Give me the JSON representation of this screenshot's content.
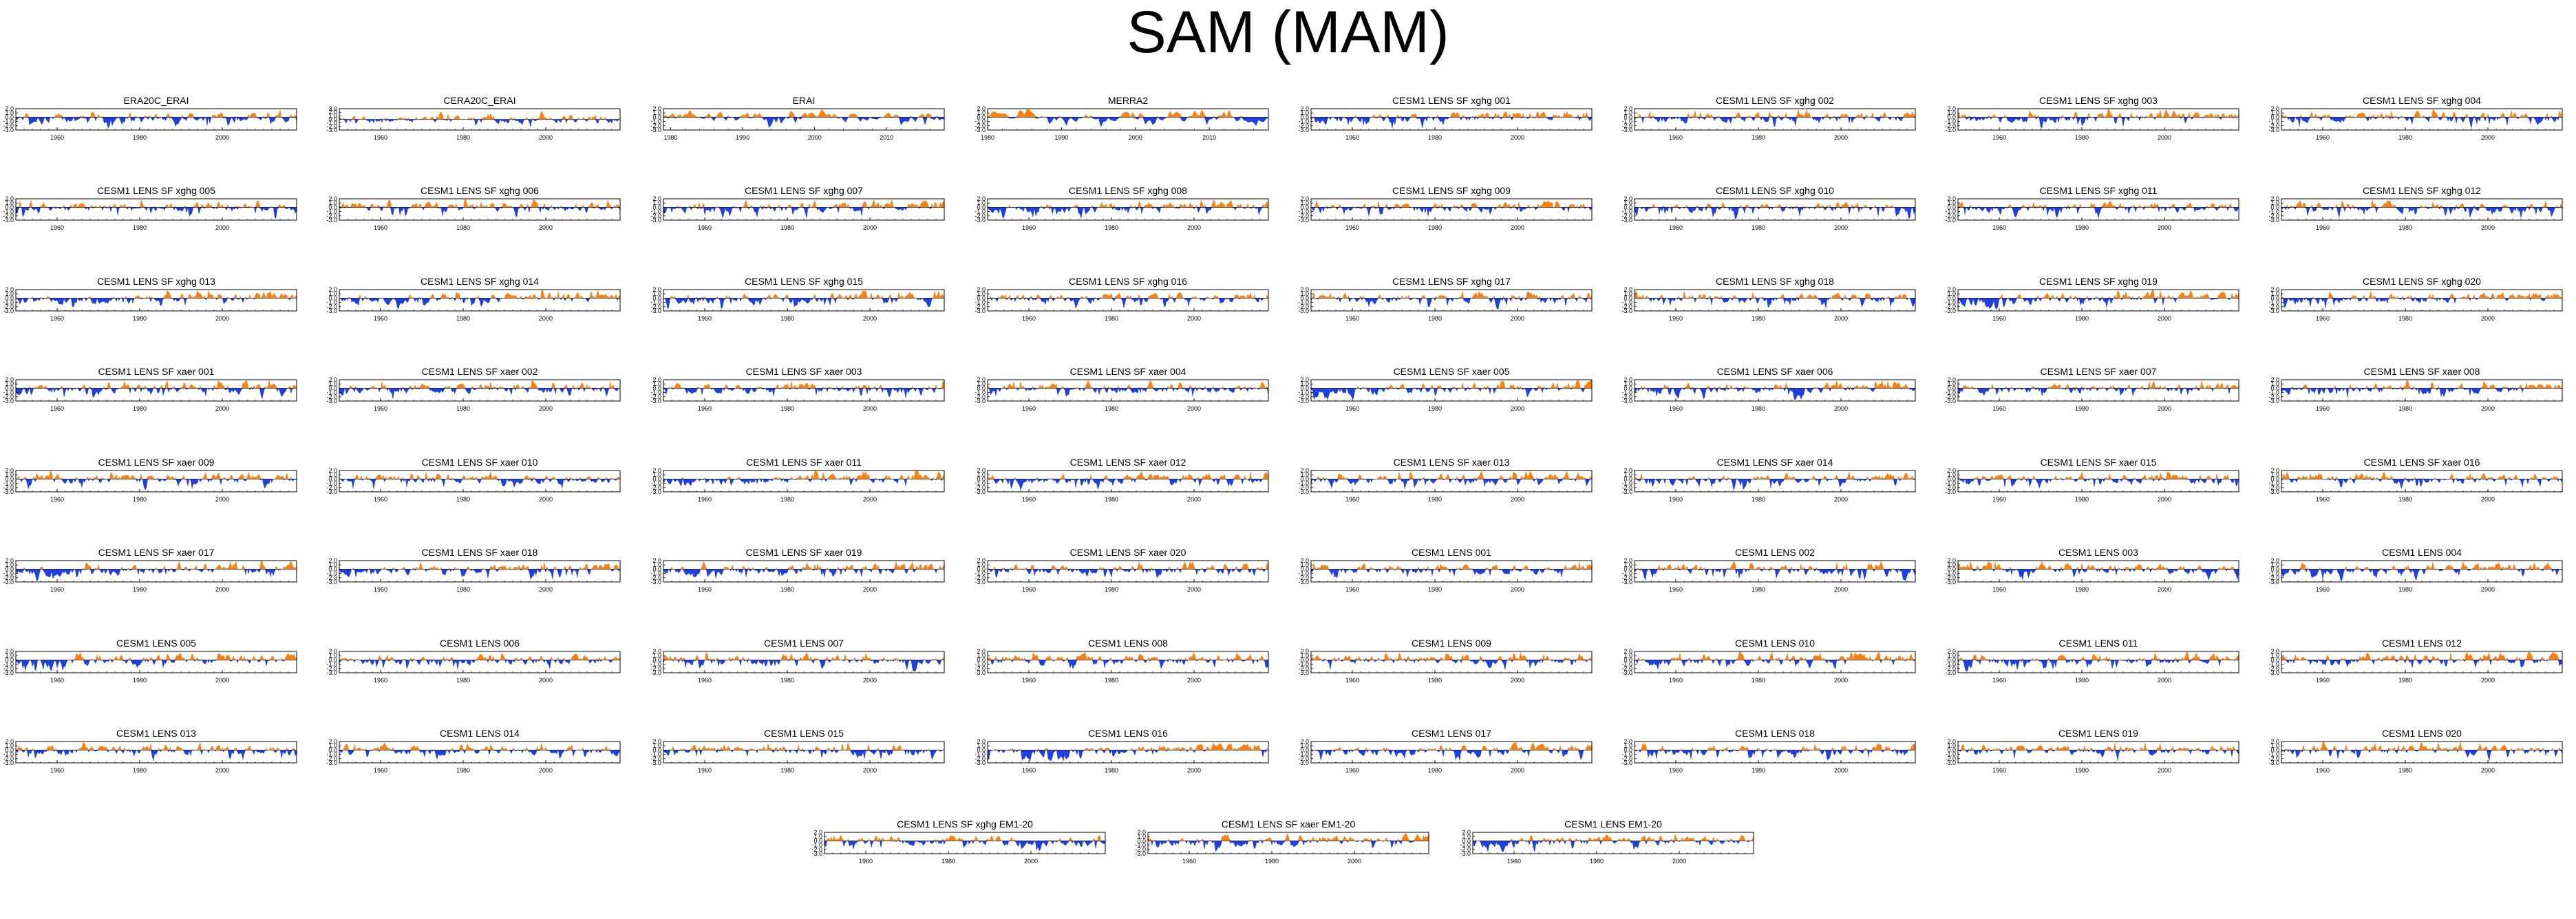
{
  "title": "SAM (MAM)",
  "colors": {
    "positive": "#ff7f0e",
    "negative": "#1f3fe0",
    "frame": "#000000"
  },
  "panel_titles": [
    "ERA20C_ERAI",
    "CERA20C_ERAI",
    "ERAI",
    "MERRA2",
    "CESM1 LENS SF xghg 001",
    "CESM1 LENS SF xghg 002",
    "CESM1 LENS SF xghg 003",
    "CESM1 LENS SF xghg 004",
    "CESM1 LENS SF xghg 005",
    "CESM1 LENS SF xghg 006",
    "CESM1 LENS SF xghg 007",
    "CESM1 LENS SF xghg 008",
    "CESM1 LENS SF xghg 009",
    "CESM1 LENS SF xghg 010",
    "CESM1 LENS SF xghg 011",
    "CESM1 LENS SF xghg 012",
    "CESM1 LENS SF xghg 013",
    "CESM1 LENS SF xghg 014",
    "CESM1 LENS SF xghg 015",
    "CESM1 LENS SF xghg 016",
    "CESM1 LENS SF xghg 017",
    "CESM1 LENS SF xghg 018",
    "CESM1 LENS SF xghg 019",
    "CESM1 LENS SF xghg 020",
    "CESM1 LENS SF xaer 001",
    "CESM1 LENS SF xaer 002",
    "CESM1 LENS SF xaer 003",
    "CESM1 LENS SF xaer 004",
    "CESM1 LENS SF xaer 005",
    "CESM1 LENS SF xaer 006",
    "CESM1 LENS SF xaer 007",
    "CESM1 LENS SF xaer 008",
    "CESM1 LENS SF xaer 009",
    "CESM1 LENS SF xaer 010",
    "CESM1 LENS SF xaer 011",
    "CESM1 LENS SF xaer 012",
    "CESM1 LENS SF xaer 013",
    "CESM1 LENS SF xaer 014",
    "CESM1 LENS SF xaer 015",
    "CESM1 LENS SF xaer 016",
    "CESM1 LENS SF xaer 017",
    "CESM1 LENS SF xaer 018",
    "CESM1 LENS SF xaer 019",
    "CESM1 LENS SF xaer 020",
    "CESM1 LENS 001",
    "CESM1 LENS 002",
    "CESM1 LENS 003",
    "CESM1 LENS 004",
    "CESM1 LENS 005",
    "CESM1 LENS 006",
    "CESM1 LENS 007",
    "CESM1 LENS 008",
    "CESM1 LENS 009",
    "CESM1 LENS 010",
    "CESM1 LENS 011",
    "CESM1 LENS 012",
    "CESM1 LENS 013",
    "CESM1 LENS 014",
    "CESM1 LENS 015",
    "CESM1 LENS 016",
    "CESM1 LENS 017",
    "CESM1 LENS 018",
    "CESM1 LENS 019",
    "CESM1 LENS 020",
    "CESM1 LENS SF xghg EM1-20",
    "CESM1 LENS SF xaer EM1-20",
    "CESM1 LENS EM1-20"
  ],
  "chart_data": {
    "type": "area",
    "x_range": [
      1950,
      2018
    ],
    "x_ticks": [
      1960,
      1980,
      2000
    ],
    "y_ticks_default": [
      "2.0",
      "1.0",
      "0.0",
      "-1.0",
      "-2.0",
      "-3.0"
    ],
    "y_range_default": [
      -3.0,
      2.0
    ],
    "panel_axes": [
      {
        "x_range": [
          1950,
          2018
        ],
        "x_ticks": [
          1960,
          1980,
          2000
        ],
        "y_ticks": [
          "2.0",
          "1.0",
          "0.0",
          "-1.0",
          "-2.0",
          "-3.0"
        ]
      },
      {
        "x_range": [
          1950,
          2018
        ],
        "x_ticks": [
          1960,
          1980,
          2000
        ],
        "y_ticks": [
          "3.0",
          "2.0",
          "1.0",
          "0.0",
          "-1.0",
          "-2.0",
          "-3.0"
        ]
      },
      {
        "x_range": [
          1979,
          2018
        ],
        "x_ticks": [
          1980,
          1990,
          2000,
          2010
        ],
        "y_ticks": [
          "2.0",
          "1.0",
          "0.0",
          "-1.0",
          "-2.0",
          "-3.0"
        ]
      },
      {
        "x_range": [
          1980,
          2018
        ],
        "x_ticks": [
          1980,
          1990,
          2000,
          2010
        ],
        "y_ticks": [
          "2.0",
          "1.0",
          "0.0",
          "-1.0",
          "-2.0",
          "-3.0"
        ]
      }
    ],
    "positive_color": "#ff7f0e",
    "negative_color": "#1f3fe0"
  }
}
